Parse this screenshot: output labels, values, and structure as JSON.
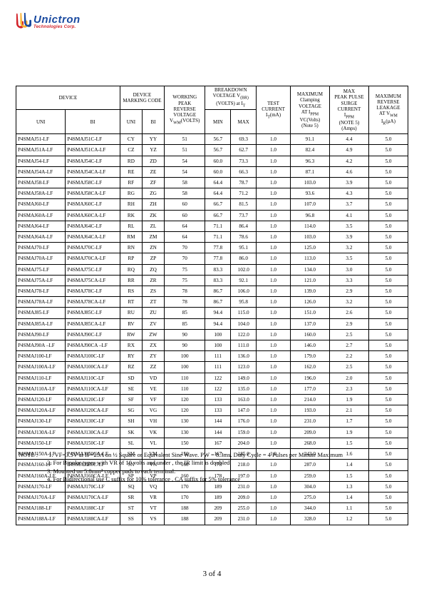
{
  "logo": {
    "brand": "Unictron",
    "subtitle": "Technologies Corp.",
    "logo_color_red": "#d2232a",
    "logo_color_yellow": "#f9b233",
    "logo_color_blue": "#1a4aa0"
  },
  "table": {
    "headers": {
      "device": "DEVICE",
      "marking": "DEVICE MARKING CODE",
      "vwm": "WORKING PEAK REVERSE VOLTAGE V₂ₘ(VOLTS)",
      "vbr": "BREAKDOWN VOLTAGE V(BR) (VOLTS) at Iᴛ",
      "it": "TEST CURRENT Iᴛ(mA)",
      "vc": "MAXIMUM Clamping VOLTAGE AT Iₚₚₘ VC(Volts) (Note 5)",
      "ippm": "MAX PEAK PULSE SURGE CURRENT Iₚₚₘ (NOTE 5) (Amps)",
      "ir": "MAXIMUM REVERSE LEAKAGE AT V₂ₘ Iᵣ(µA)",
      "uni": "UNI",
      "bi": "BI",
      "min": "MIN",
      "max": "MAX"
    },
    "rows": [
      {
        "uni": "P4SMAJ51-LF",
        "bi": "P4SMAJ51C-LF",
        "mu": "CY",
        "mb": "YY",
        "vwm": "51",
        "min": "56.7",
        "max": "69.3",
        "it": "1.0",
        "vc": "91.1",
        "ippm": "4.4",
        "ir": "5.0"
      },
      {
        "uni": "P4SMAJ51A-LF",
        "bi": "P4SMAJ51CA-LF",
        "mu": "CZ",
        "mb": "YZ",
        "vwm": "51",
        "min": "56.7",
        "max": "62.7",
        "it": "1.0",
        "vc": "82.4",
        "ippm": "4.9",
        "ir": "5.0"
      },
      {
        "uni": "P4SMAJ54-LF",
        "bi": "P4SMAJ54C-LF",
        "mu": "RD",
        "mb": "ZD",
        "vwm": "54",
        "min": "60.0",
        "max": "73.3",
        "it": "1.0",
        "vc": "96.3",
        "ippm": "4.2",
        "ir": "5.0"
      },
      {
        "uni": "P4SMAJ54A-LF",
        "bi": "P4SMAJ54CA-LF",
        "mu": "RE",
        "mb": "ZE",
        "vwm": "54",
        "min": "60.0",
        "max": "66.3",
        "it": "1.0",
        "vc": "87.1",
        "ippm": "4.6",
        "ir": "5.0"
      },
      {
        "uni": "P4SMAJ58-LF",
        "bi": "P4SMAJ58C-LF",
        "mu": "RF",
        "mb": "ZF",
        "vwm": "58",
        "min": "64.4",
        "max": "78.7",
        "it": "1.0",
        "vc": "103.0",
        "ippm": "3.9",
        "ir": "5.0"
      },
      {
        "uni": "P4SMAJ58A-LF",
        "bi": "P4SMAJ58CA-LF",
        "mu": "RG",
        "mb": "ZG",
        "vwm": "58",
        "min": "64.4",
        "max": "71.2",
        "it": "1.0",
        "vc": "93.6",
        "ippm": "4.3",
        "ir": "5.0"
      },
      {
        "uni": "P4SMAJ60-LF",
        "bi": "P4SMAJ60C-LF",
        "mu": "RH",
        "mb": "ZH",
        "vwm": "60",
        "min": "66.7",
        "max": "81.5",
        "it": "1.0",
        "vc": "107.0",
        "ippm": "3.7",
        "ir": "5.0"
      },
      {
        "uni": "P4SMAJ60A-LF",
        "bi": "P4SMAJ60CA-LF",
        "mu": "RK",
        "mb": "ZK",
        "vwm": "60",
        "min": "66.7",
        "max": "73.7",
        "it": "1.0",
        "vc": "96.8",
        "ippm": "4.1",
        "ir": "5.0"
      },
      {
        "uni": "P4SMAJ64-LF",
        "bi": "P4SMAJ64C-LF",
        "mu": "RL",
        "mb": "ZL",
        "vwm": "64",
        "min": "71.1",
        "max": "86.4",
        "it": "1.0",
        "vc": "114.0",
        "ippm": "3.5",
        "ir": "5.0"
      },
      {
        "uni": "P4SMAJ64A-LF",
        "bi": "P4SMAJ64CA-LF",
        "mu": "RM",
        "mb": "ZM",
        "vwm": "64",
        "min": "71.1",
        "max": "78.6",
        "it": "1.0",
        "vc": "103.0",
        "ippm": "3.9",
        "ir": "5.0"
      },
      {
        "uni": "P4SMAJ70-LF",
        "bi": "P4SMAJ70C-LF",
        "mu": "RN",
        "mb": "ZN",
        "vwm": "70",
        "min": "77.8",
        "max": "95.1",
        "it": "1.0",
        "vc": "125.0",
        "ippm": "3.2",
        "ir": "5.0"
      },
      {
        "uni": "P4SMAJ70A-LF",
        "bi": "P4SMAJ70CA-LF",
        "mu": "RP",
        "mb": "ZP",
        "vwm": "70",
        "min": "77.8",
        "max": "86.0",
        "it": "1.0",
        "vc": "113.0",
        "ippm": "3.5",
        "ir": "5.0"
      },
      {
        "uni": "P4SMAJ75-LF",
        "bi": "P4SMAJ75C-LF",
        "mu": "RQ",
        "mb": "ZQ",
        "vwm": "75",
        "min": "83.3",
        "max": "102.0",
        "it": "1.0",
        "vc": "134.0",
        "ippm": "3.0",
        "ir": "5.0"
      },
      {
        "uni": "P4SMAJ75A-LF",
        "bi": "P4SMAJ75CA-LF",
        "mu": "RR",
        "mb": "ZR",
        "vwm": "75",
        "min": "83.3",
        "max": "92.1",
        "it": "1.0",
        "vc": "121.0",
        "ippm": "3.3",
        "ir": "5.0"
      },
      {
        "uni": "P4SMAJ78-LF",
        "bi": "P4SMAJ78C-LF",
        "mu": "RS",
        "mb": "ZS",
        "vwm": "78",
        "min": "86.7",
        "max": "106.0",
        "it": "1.0",
        "vc": "139.0",
        "ippm": "2.9",
        "ir": "5.0"
      },
      {
        "uni": "P4SMAJ78A-LF",
        "bi": "P4SMAJ78CA-LF",
        "mu": "RT",
        "mb": "ZT",
        "vwm": "78",
        "min": "86.7",
        "max": "95.8",
        "it": "1.0",
        "vc": "126.0",
        "ippm": "3.2",
        "ir": "5.0"
      },
      {
        "uni": "P4SMAJ85-LF",
        "bi": "P4SMAJ85C-LF",
        "mu": "RU",
        "mb": "ZU",
        "vwm": "85",
        "min": "94.4",
        "max": "115.0",
        "it": "1.0",
        "vc": "151.0",
        "ippm": "2.6",
        "ir": "5.0"
      },
      {
        "uni": "P4SMAJ85A-LF",
        "bi": "P4SMAJ85CA-LF",
        "mu": "RV",
        "mb": "ZV",
        "vwm": "85",
        "min": "94.4",
        "max": "104.0",
        "it": "1.0",
        "vc": "137.0",
        "ippm": "2.9",
        "ir": "5.0"
      },
      {
        "uni": "P4SMAJ90-LF",
        "bi": "P4SMAJ90C-LF",
        "mu": "RW",
        "mb": "ZW",
        "vwm": "90",
        "min": "100",
        "max": "122.0",
        "it": "1.0",
        "vc": "160.0",
        "ippm": "2.5",
        "ir": "5.0"
      },
      {
        "uni": "P4SMAJ90A –LF",
        "bi": "P4SMAJ90CA –LF",
        "mu": "RX",
        "mb": "ZX",
        "vwm": "90",
        "min": "100",
        "max": "111.0",
        "it": "1.0",
        "vc": "146.0",
        "ippm": "2.7",
        "ir": "5.0"
      },
      {
        "uni": "P4SMAJ100-LF",
        "bi": "P4SMAJ100C-LF",
        "mu": "RY",
        "mb": "ZY",
        "vwm": "100",
        "min": "111",
        "max": "136.0",
        "it": "1.0",
        "vc": "179.0",
        "ippm": "2.2",
        "ir": "5.0"
      },
      {
        "uni": "P4SMAJ100A-LF",
        "bi": "P4SMAJ100CA-LF",
        "mu": "RZ",
        "mb": "ZZ",
        "vwm": "100",
        "min": "111",
        "max": "123.0",
        "it": "1.0",
        "vc": "162.0",
        "ippm": "2.5",
        "ir": "5.0"
      },
      {
        "uni": "P4SMAJ110-LF",
        "bi": "P4SMAJ110C-LF",
        "mu": "SD",
        "mb": "VD",
        "vwm": "110",
        "min": "122",
        "max": "149.0",
        "it": "1.0",
        "vc": "196.0",
        "ippm": "2.0",
        "ir": "5.0"
      },
      {
        "uni": "P4SMAJ110A-LF",
        "bi": "P4SMAJ110CA-LF",
        "mu": "SE",
        "mb": "VE",
        "vwm": "110",
        "min": "122",
        "max": "135.0",
        "it": "1.0",
        "vc": "177.0",
        "ippm": "2.3",
        "ir": "5.0"
      },
      {
        "uni": "P4SMAJ120-LF",
        "bi": "P4SMAJ120C-LF",
        "mu": "SF",
        "mb": "VF",
        "vwm": "120",
        "min": "133",
        "max": "163.0",
        "it": "1.0",
        "vc": "214.0",
        "ippm": "1.9",
        "ir": "5.0"
      },
      {
        "uni": "P4SMAJ120A-LF",
        "bi": "P4SMAJ120CA-LF",
        "mu": "SG",
        "mb": "VG",
        "vwm": "120",
        "min": "133",
        "max": "147.0",
        "it": "1.0",
        "vc": "193.0",
        "ippm": "2.1",
        "ir": "5.0"
      },
      {
        "uni": "P4SMAJ130-LF",
        "bi": "P4SMAJ130C-LF",
        "mu": "SH",
        "mb": "VH",
        "vwm": "130",
        "min": "144",
        "max": "176.0",
        "it": "1.0",
        "vc": "231.0",
        "ippm": "1.7",
        "ir": "5.0"
      },
      {
        "uni": "P4SMAJ130A-LF",
        "bi": "P4SMAJ130CA-LF",
        "mu": "SK",
        "mb": "VK",
        "vwm": "130",
        "min": "144",
        "max": "159.0",
        "it": "1.0",
        "vc": "209.0",
        "ippm": "1.9",
        "ir": "5.0"
      },
      {
        "uni": "P4SMAJ150-LF",
        "bi": "P4SMAJ150C-LF",
        "mu": "SL",
        "mb": "VL",
        "vwm": "150",
        "min": "167",
        "max": "204.0",
        "it": "1.0",
        "vc": "268.0",
        "ippm": "1.5",
        "ir": "5.0"
      },
      {
        "uni": "P4SMAJ150A-LF",
        "bi": "P4SMAJ150CA-LF",
        "mu": "SM",
        "mb": "VM",
        "vwm": "150",
        "min": "167",
        "max": "185.0",
        "it": "1.0",
        "vc": "243.0",
        "ippm": "1.6",
        "ir": "5.0"
      },
      {
        "uni": "P4SMAJ160-LF",
        "bi": "P4SMAJ160C-LF",
        "mu": "SN",
        "mb": "VN",
        "vwm": "160",
        "min": "178",
        "max": "218.0",
        "it": "1.0",
        "vc": "287.0",
        "ippm": "1.4",
        "ir": "5.0"
      },
      {
        "uni": "P4SMAJ160A-LF",
        "bi": "P4SMAJ160CA-LF",
        "mu": "SP",
        "mb": "VP",
        "vwm": "160",
        "min": "178",
        "max": "197.0",
        "it": "1.0",
        "vc": "259.0",
        "ippm": "1.5",
        "ir": "5.0"
      },
      {
        "uni": "P4SMAJ170-LF",
        "bi": "P4SMAJ170C-LF",
        "mu": "SQ",
        "mb": "VQ",
        "vwm": "170",
        "min": "189",
        "max": "231.0",
        "it": "1.0",
        "vc": "304.0",
        "ippm": "1.3",
        "ir": "5.0"
      },
      {
        "uni": "P4SMAJ170A-LF",
        "bi": "P4SMAJ170CA-LF",
        "mu": "SR",
        "mb": "VR",
        "vwm": "170",
        "min": "189",
        "max": "209.0",
        "it": "1.0",
        "vc": "275.0",
        "ippm": "1.4",
        "ir": "5.0"
      },
      {
        "uni": "P4SMAJ188-LF",
        "bi": "P4SMAJ188C-LF",
        "mu": "ST",
        "mb": "VT",
        "vwm": "188",
        "min": "209",
        "max": "255.0",
        "it": "1.0",
        "vc": "344.0",
        "ippm": "1.1",
        "ir": "5.0"
      },
      {
        "uni": "P4SMAJ188A-LF",
        "bi": "P4SMAJ188CA-LF",
        "mu": "SS",
        "mb": "VS",
        "vwm": "188",
        "min": "209",
        "max": "231.0",
        "it": "1.0",
        "vc": "328.0",
        "ippm": "1.2",
        "ir": "5.0"
      }
    ]
  },
  "notes": {
    "label": "NOTE :",
    "n1": "1. VF=3.5V at IF=25A on ½ Square or Equivalent Sine Wave. PW = 8.3ms.   Duty Cycle = 4 Pulses per Minute Maximum",
    "n2": "2. For Bipolar types with VR of 10 volts and under , the IR limit is doubled",
    "n3": "3. Mounted on 5.0mm² copper pads to each terminal.",
    "n4": "4. For Bidirectional use C suffix for 10%   tolerance . CA suffix for 5%   tolerance"
  },
  "footer": {
    "page": "3 of 4"
  }
}
